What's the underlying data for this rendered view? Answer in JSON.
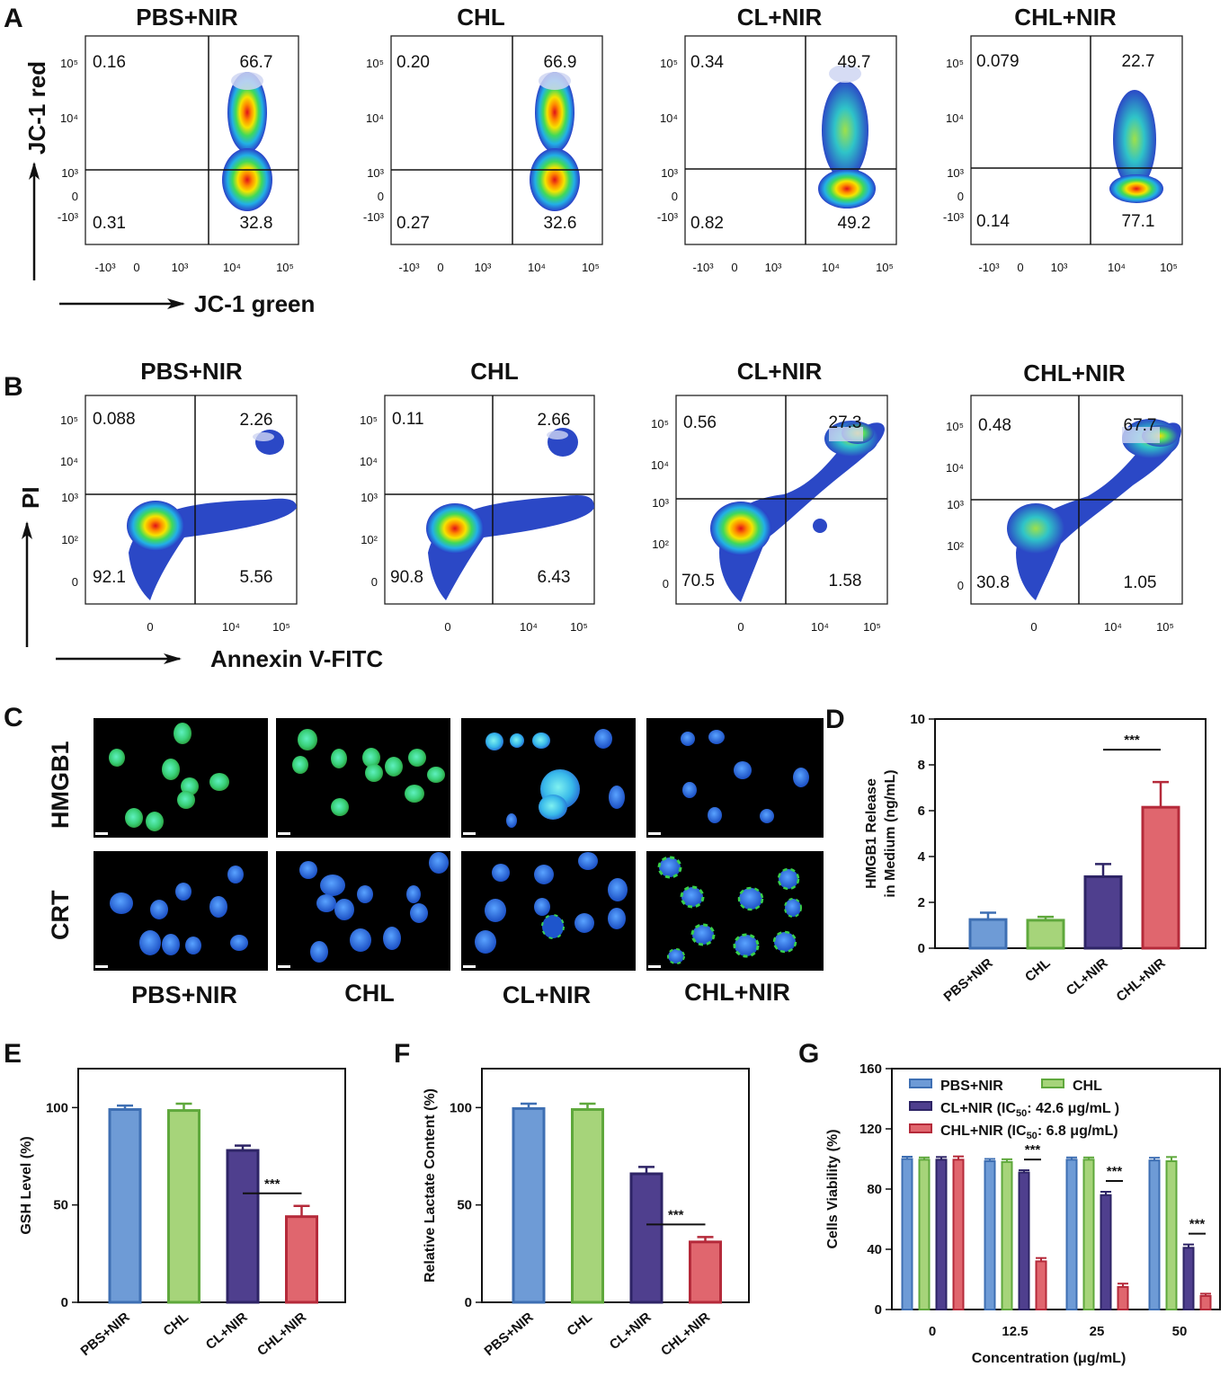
{
  "figure": {
    "panel_labels": [
      "A",
      "B",
      "C",
      "D",
      "E",
      "F",
      "G"
    ],
    "groups": [
      "PBS+NIR",
      "CHL",
      "CL+NIR",
      "CHL+NIR"
    ],
    "colors": {
      "blue": "#6E9BD6",
      "green": "#A6D47A",
      "purple": "#4F3F8E",
      "red": "#E0666E",
      "blue_edge": "#3E6FB3",
      "green_edge": "#5FA83C",
      "purple_edge": "#2E2466",
      "red_edge": "#B52A3A"
    }
  },
  "panel_a": {
    "xlabel": "JC-1 green",
    "ylabel": "JC-1 red",
    "plots": [
      {
        "title": "PBS+NIR",
        "ul": "0.16",
        "ur": "66.7",
        "ll": "0.31",
        "lr": "32.8"
      },
      {
        "title": "CHL",
        "ul": "0.20",
        "ur": "66.9",
        "ll": "0.27",
        "lr": "32.6"
      },
      {
        "title": "CL+NIR",
        "ul": "0.34",
        "ur": "49.7",
        "ll": "0.82",
        "lr": "49.2"
      },
      {
        "title": "CHL+NIR",
        "ul": "0.079",
        "ur": "22.7",
        "ll": "0.14",
        "lr": "77.1"
      }
    ]
  },
  "panel_b": {
    "xlabel": "Annexin V-FITC",
    "ylabel": "PI",
    "plots": [
      {
        "title": "PBS+NIR",
        "ul": "0.088",
        "ur": "2.26",
        "ll": "92.1",
        "lr": "5.56"
      },
      {
        "title": "CHL",
        "ul": "0.11",
        "ur": "2.66",
        "ll": "90.8",
        "lr": "6.43"
      },
      {
        "title": "CL+NIR",
        "ul": "0.56",
        "ur": "27.3",
        "ll": "70.5",
        "lr": "1.58"
      },
      {
        "title": "CHL+NIR",
        "ul": "0.48",
        "ur": "67.7",
        "ll": "30.8",
        "lr": "1.05"
      }
    ]
  },
  "panel_c": {
    "rows": [
      "HMGB1",
      "CRT"
    ],
    "columns": [
      "PBS+NIR",
      "CHL",
      "CL+NIR",
      "CHL+NIR"
    ]
  },
  "chart_data": [
    {
      "panel": "D",
      "type": "bar",
      "categories": [
        "PBS+NIR",
        "CHL",
        "CL+NIR",
        "CHL+NIR"
      ],
      "values": [
        1.25,
        1.22,
        3.12,
        6.15
      ],
      "errors": [
        0.3,
        0.15,
        0.55,
        1.1
      ],
      "ylabel": "HMGB1 Release in Medium (ng/mL)",
      "ylabel_lines": [
        "HMGB1 Release",
        "in Medium (ng/mL)"
      ],
      "ylim": [
        0,
        10
      ],
      "yticks": [
        0,
        2,
        4,
        6,
        8,
        10
      ],
      "significance": {
        "from": 2,
        "to": 3,
        "label": "***"
      }
    },
    {
      "panel": "E",
      "type": "bar",
      "categories": [
        "PBS+NIR",
        "CHL",
        "CL+NIR",
        "CHL+NIR"
      ],
      "values": [
        99,
        98.5,
        78,
        44
      ],
      "errors": [
        2,
        3.5,
        2.5,
        5.5
      ],
      "ylabel": "GSH Level (%)",
      "ylim": [
        0,
        120
      ],
      "yticks": [
        0,
        50,
        100
      ],
      "significance": {
        "from": 2,
        "to": 3,
        "label": "***"
      }
    },
    {
      "panel": "F",
      "type": "bar",
      "categories": [
        "PBS+NIR",
        "CHL",
        "CL+NIR",
        "CHL+NIR"
      ],
      "values": [
        99.5,
        99,
        66,
        31
      ],
      "errors": [
        2.5,
        3,
        3.5,
        2.5
      ],
      "ylabel": "Relative Lactate Content (%)",
      "ylim": [
        0,
        120
      ],
      "yticks": [
        0,
        50,
        100
      ],
      "significance": {
        "from": 2,
        "to": 3,
        "label": "***"
      }
    },
    {
      "panel": "G",
      "type": "bar",
      "categories": [
        "0",
        "12.5",
        "25",
        "50"
      ],
      "series": [
        {
          "name": "PBS+NIR",
          "values": [
            100,
            98.5,
            99.5,
            99
          ],
          "errors": [
            1.5,
            1.5,
            1.5,
            1.8
          ]
        },
        {
          "name": "CHL",
          "values": [
            99.5,
            98,
            99.5,
            98.5
          ],
          "errors": [
            1.5,
            1.8,
            1.5,
            2.8
          ]
        },
        {
          "name": "CL+NIR (IC50: 42.6 μg/mL )",
          "values": [
            99.5,
            91,
            76,
            41
          ],
          "errors": [
            1.8,
            1.5,
            2.2,
            2.2
          ]
        },
        {
          "name": "CHL+NIR (IC50: 6.8 μg/mL)",
          "values": [
            99.5,
            32,
            15,
            9
          ],
          "errors": [
            2.2,
            2.2,
            2.2,
            1.5
          ]
        }
      ],
      "legend_parts": [
        {
          "pre": "PBS+NIR",
          "sub": "",
          "post": ""
        },
        {
          "pre": "CHL",
          "sub": "",
          "post": ""
        },
        {
          "pre": "CL+NIR (IC",
          "sub": "50",
          "post": ": 42.6 μg/mL )"
        },
        {
          "pre": "CHL+NIR (IC",
          "sub": "50",
          "post": ": 6.8 μg/mL)"
        }
      ],
      "xlabel": "Concentration (μg/mL)",
      "ylabel": "Cells Viability (%)",
      "ylim": [
        0,
        160
      ],
      "yticks": [
        0,
        40,
        80,
        120,
        160
      ],
      "significance": [
        {
          "group": 1,
          "label": "***"
        },
        {
          "group": 2,
          "label": "***"
        },
        {
          "group": 3,
          "label": "***"
        }
      ]
    }
  ]
}
